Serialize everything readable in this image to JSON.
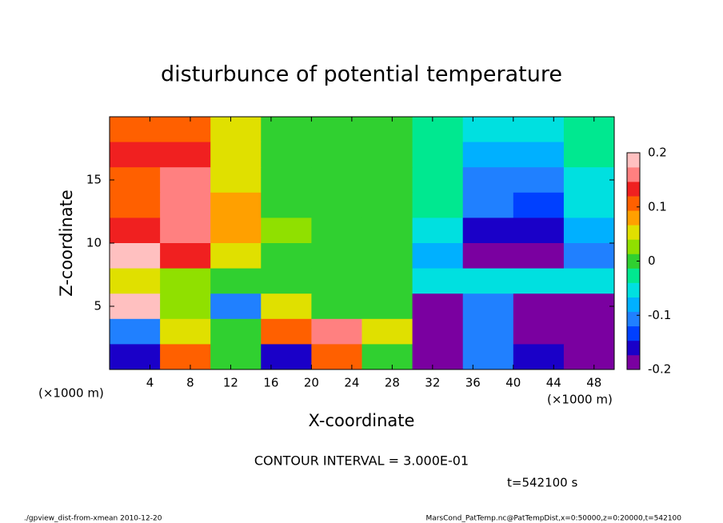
{
  "chart_data": {
    "type": "contour",
    "title": "disturbunce of potential temperature",
    "xlabel": "X-coordinate",
    "ylabel": "Z-coordinate",
    "x_unit_label": "(×1000 m)",
    "y_unit_label": "(×1000 m)",
    "contour_interval": "CONTOUR INTERVAL = 3.000E-01",
    "time_label": "t=542100 s",
    "footer_left": "./gpview_dist-from-xmean  2010-12-20",
    "footer_right": "MarsCond_PatTemp.nc@PatTempDist,x=0:50000,z=0:20000,t=542100",
    "xlim": [
      0,
      50
    ],
    "ylim": [
      0,
      20
    ],
    "xticks": [
      4,
      8,
      12,
      16,
      20,
      24,
      28,
      32,
      36,
      40,
      44,
      48
    ],
    "yticks": [
      5,
      10,
      15
    ],
    "clim": [
      -0.2,
      0.2
    ],
    "cticks": [
      -0.2,
      -0.1,
      0,
      0.1,
      0.2
    ],
    "colormap": [
      "#7a00a0",
      "#1a00c8",
      "#0040ff",
      "#2080ff",
      "#00b0ff",
      "#00e0e0",
      "#00e890",
      "#30d030",
      "#90e000",
      "#e0e000",
      "#ffa000",
      "#ff6000",
      "#f02020",
      "#ff8080",
      "#ffc0c0"
    ],
    "x": [
      2.5,
      7.5,
      12.5,
      17.5,
      22.5,
      27.5,
      32.5,
      37.5,
      42.5,
      47.5
    ],
    "z": [
      19,
      17,
      15,
      13,
      11,
      9,
      7,
      5,
      3,
      1
    ],
    "values": [
      [
        0.12,
        0.1,
        0.04,
        0.0,
        0.0,
        0.0,
        -0.03,
        -0.06,
        -0.06,
        -0.03
      ],
      [
        0.13,
        0.13,
        0.05,
        0.0,
        0.0,
        0.0,
        -0.03,
        -0.08,
        -0.08,
        -0.03
      ],
      [
        0.12,
        0.16,
        0.06,
        0.01,
        0.0,
        0.0,
        -0.03,
        -0.1,
        -0.12,
        -0.05
      ],
      [
        0.12,
        0.17,
        0.07,
        0.01,
        -0.01,
        0.0,
        -0.03,
        -0.12,
        -0.14,
        -0.06
      ],
      [
        0.14,
        0.16,
        0.07,
        0.02,
        -0.01,
        0.0,
        -0.04,
        -0.15,
        -0.16,
        -0.08
      ],
      [
        0.2,
        0.14,
        0.06,
        0.01,
        -0.01,
        0.0,
        -0.08,
        -0.2,
        -0.2,
        -0.1
      ],
      [
        0.05,
        0.02,
        0.0,
        0.0,
        0.0,
        0.0,
        -0.05,
        -0.05,
        -0.05,
        -0.05
      ],
      [
        0.2,
        0.03,
        -0.1,
        0.05,
        0.0,
        0.0,
        -0.2,
        -0.1,
        -0.2,
        -0.2
      ],
      [
        -0.1,
        0.05,
        0.0,
        0.1,
        0.15,
        0.05,
        -0.2,
        -0.1,
        -0.2,
        -0.2
      ],
      [
        -0.15,
        0.1,
        0.0,
        -0.15,
        0.1,
        0.0,
        -0.2,
        -0.1,
        -0.15,
        -0.2
      ]
    ]
  }
}
